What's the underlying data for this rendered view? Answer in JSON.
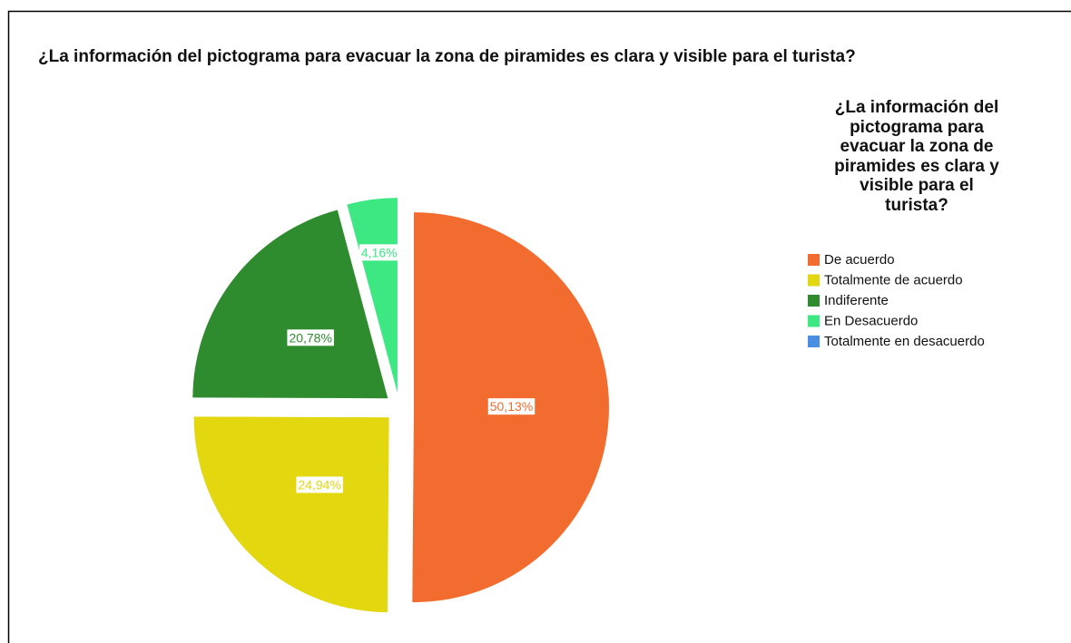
{
  "chart_data": {
    "type": "pie",
    "title": "¿La información del pictograma para evacuar la zona de piramides es clara y visible para el turista?",
    "legend_title": "¿La información del pictograma para evacuar la zona de piramides es clara y visible para el turista?",
    "legend_position": "right",
    "categories": [
      "De acuerdo",
      "Totalmente de acuerdo",
      "Indiferente",
      "En Desacuerdo",
      "Totalmente en desacuerdo"
    ],
    "values": [
      50.13,
      24.94,
      20.78,
      4.16,
      0
    ],
    "value_labels": [
      "50,13%",
      "24,94%",
      "20,78%",
      "4,16%",
      null
    ],
    "colors": [
      "#f26b2f",
      "#e3d70f",
      "#2e8b2e",
      "#3de882",
      "#4a90e2"
    ]
  }
}
